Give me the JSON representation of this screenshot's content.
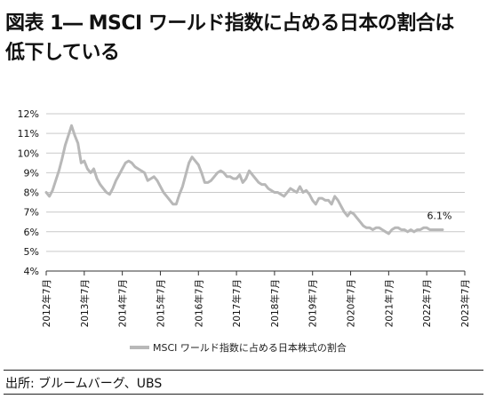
{
  "title_lines": [
    "図表 1― MSCI ワールド指数に占める日本の割合は",
    "低下している"
  ],
  "source": "出所: ブルームバーグ、UBS",
  "colors": {
    "series": "#b8b8b8",
    "grid": "#c9c9c9",
    "axis": "#333333",
    "text": "#111111"
  },
  "chart_data": {
    "type": "line",
    "ylim": [
      4,
      12
    ],
    "yticks": [
      4,
      5,
      6,
      7,
      8,
      9,
      10,
      11,
      12
    ],
    "ytick_labels": [
      "4%",
      "5%",
      "6%",
      "7%",
      "8%",
      "9%",
      "10%",
      "11%",
      "12%"
    ],
    "xlim": [
      "2012-07",
      "2023-07"
    ],
    "xtick_labels": [
      "2012年7月",
      "2013年7月",
      "2014年7月",
      "2015年7月",
      "2016年7月",
      "2017年7月",
      "2018年7月",
      "2019年7月",
      "2020年7月",
      "2021年7月",
      "2022年7月",
      "2023年7月"
    ],
    "grid": "horizontal",
    "legend": "bottom",
    "annotation": {
      "text": "6.1%",
      "x": "2022-11"
    },
    "series": [
      {
        "name": "MSCI ワールド指数に占める日本株式の割合",
        "x": [
          "2012-07",
          "2012-08",
          "2012-09",
          "2012-10",
          "2012-11",
          "2012-12",
          "2013-01",
          "2013-02",
          "2013-03",
          "2013-04",
          "2013-05",
          "2013-06",
          "2013-07",
          "2013-08",
          "2013-09",
          "2013-10",
          "2013-11",
          "2013-12",
          "2014-01",
          "2014-02",
          "2014-03",
          "2014-04",
          "2014-05",
          "2014-06",
          "2014-07",
          "2014-08",
          "2014-09",
          "2014-10",
          "2014-11",
          "2014-12",
          "2015-01",
          "2015-02",
          "2015-03",
          "2015-04",
          "2015-05",
          "2015-06",
          "2015-07",
          "2015-08",
          "2015-09",
          "2015-10",
          "2015-11",
          "2015-12",
          "2016-01",
          "2016-02",
          "2016-03",
          "2016-04",
          "2016-05",
          "2016-06",
          "2016-07",
          "2016-08",
          "2016-09",
          "2016-10",
          "2016-11",
          "2016-12",
          "2017-01",
          "2017-02",
          "2017-03",
          "2017-04",
          "2017-05",
          "2017-06",
          "2017-07",
          "2017-08",
          "2017-09",
          "2017-10",
          "2017-11",
          "2017-12",
          "2018-01",
          "2018-02",
          "2018-03",
          "2018-04",
          "2018-05",
          "2018-06",
          "2018-07",
          "2018-08",
          "2018-09",
          "2018-10",
          "2018-11",
          "2018-12",
          "2019-01",
          "2019-02",
          "2019-03",
          "2019-04",
          "2019-05",
          "2019-06",
          "2019-07",
          "2019-08",
          "2019-09",
          "2019-10",
          "2019-11",
          "2019-12",
          "2020-01",
          "2020-02",
          "2020-03",
          "2020-04",
          "2020-05",
          "2020-06",
          "2020-07",
          "2020-08",
          "2020-09",
          "2020-10",
          "2020-11",
          "2020-12",
          "2021-01",
          "2021-02",
          "2021-03",
          "2021-04",
          "2021-05",
          "2021-06",
          "2021-07",
          "2021-08",
          "2021-09",
          "2021-10",
          "2021-11",
          "2021-12",
          "2022-01",
          "2022-02",
          "2022-03",
          "2022-04",
          "2022-05",
          "2022-06",
          "2022-07",
          "2022-08",
          "2022-09",
          "2022-10",
          "2022-11",
          "2022-12"
        ],
        "values": [
          8.0,
          7.8,
          8.1,
          8.6,
          9.1,
          9.7,
          10.4,
          10.9,
          11.4,
          10.9,
          10.5,
          9.5,
          9.6,
          9.2,
          9.0,
          9.2,
          8.7,
          8.4,
          8.2,
          8.0,
          7.9,
          8.2,
          8.6,
          8.9,
          9.2,
          9.5,
          9.6,
          9.5,
          9.3,
          9.2,
          9.1,
          9.0,
          8.6,
          8.7,
          8.8,
          8.6,
          8.3,
          8.0,
          7.8,
          7.6,
          7.4,
          7.4,
          7.9,
          8.3,
          8.9,
          9.5,
          9.8,
          9.6,
          9.4,
          9.0,
          8.5,
          8.5,
          8.6,
          8.8,
          9.0,
          9.1,
          9.0,
          8.8,
          8.8,
          8.7,
          8.7,
          8.9,
          8.5,
          8.7,
          9.1,
          8.9,
          8.7,
          8.5,
          8.4,
          8.4,
          8.2,
          8.1,
          8.0,
          8.0,
          7.9,
          7.8,
          8.0,
          8.2,
          8.1,
          8.0,
          8.3,
          8.0,
          8.1,
          7.9,
          7.6,
          7.4,
          7.7,
          7.7,
          7.6,
          7.6,
          7.4,
          7.8,
          7.6,
          7.3,
          7.0,
          6.8,
          7.0,
          6.9,
          6.7,
          6.5,
          6.3,
          6.2,
          6.2,
          6.1,
          6.2,
          6.2,
          6.1,
          6.0,
          5.9,
          6.1,
          6.2,
          6.2,
          6.1,
          6.1,
          6.0,
          6.1,
          6.0,
          6.1,
          6.1,
          6.2,
          6.2,
          6.1,
          6.1,
          6.1,
          6.1,
          6.1
        ]
      }
    ]
  }
}
